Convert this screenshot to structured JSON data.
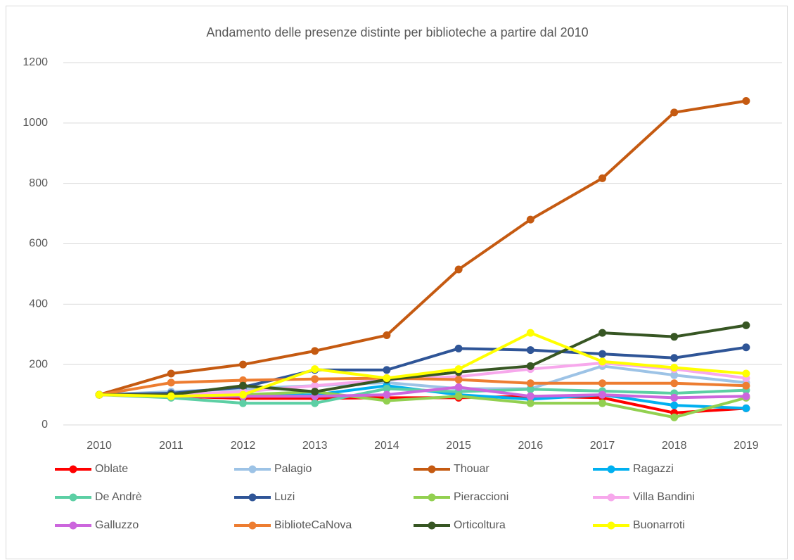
{
  "chart_data": {
    "type": "line",
    "title": "Andamento delle presenze distinte per biblioteche a partire dal 2010",
    "categories": [
      "2010",
      "2011",
      "2012",
      "2013",
      "2014",
      "2015",
      "2016",
      "2017",
      "2018",
      "2019"
    ],
    "ylim": [
      0,
      1200
    ],
    "yticks": [
      0,
      200,
      400,
      600,
      800,
      1000,
      1200
    ],
    "grid": true,
    "legend": "bottom",
    "series": [
      {
        "name": "Oblate",
        "color": "#ff0000",
        "values": [
          100,
          95,
          88,
          88,
          90,
          90,
          95,
          90,
          40,
          55
        ]
      },
      {
        "name": "Palagio",
        "color": "#9dc3e6",
        "values": [
          100,
          110,
          120,
          130,
          140,
          120,
          120,
          195,
          165,
          140
        ]
      },
      {
        "name": "Thouar",
        "color": "#c55a11",
        "values": [
          100,
          170,
          200,
          245,
          297,
          515,
          680,
          817,
          1035,
          1073
        ]
      },
      {
        "name": "Ragazzi",
        "color": "#00b0f0",
        "values": [
          100,
          95,
          95,
          100,
          130,
          100,
          85,
          100,
          65,
          55
        ]
      },
      {
        "name": "De Andrè",
        "color": "#5ccfa4",
        "values": [
          100,
          90,
          72,
          72,
          120,
          110,
          118,
          112,
          105,
          115
        ]
      },
      {
        "name": "Luzi",
        "color": "#2f5597",
        "values": [
          100,
          105,
          125,
          182,
          182,
          253,
          248,
          235,
          222,
          257
        ]
      },
      {
        "name": "Pieraccioni",
        "color": "#92d050",
        "values": [
          100,
          95,
          100,
          110,
          80,
          95,
          72,
          72,
          25,
          90
        ]
      },
      {
        "name": "Villa Bandini",
        "color": "#f7a8ec",
        "values": [
          100,
          100,
          110,
          130,
          150,
          160,
          185,
          205,
          185,
          155
        ]
      },
      {
        "name": "Galluzzo",
        "color": "#cc66dd",
        "values": [
          100,
          95,
          95,
          95,
          100,
          125,
          95,
          100,
          90,
          95
        ]
      },
      {
        "name": "BiblioteCaNova",
        "color": "#ed7d31",
        "values": [
          100,
          140,
          148,
          152,
          155,
          150,
          138,
          138,
          138,
          130
        ]
      },
      {
        "name": "Orticoltura",
        "color": "#375623",
        "values": [
          100,
          100,
          130,
          110,
          150,
          175,
          195,
          305,
          292,
          330
        ]
      },
      {
        "name": "Buonarroti",
        "color": "#ffff00",
        "values": [
          100,
          95,
          100,
          185,
          155,
          185,
          305,
          210,
          190,
          170
        ]
      }
    ]
  }
}
